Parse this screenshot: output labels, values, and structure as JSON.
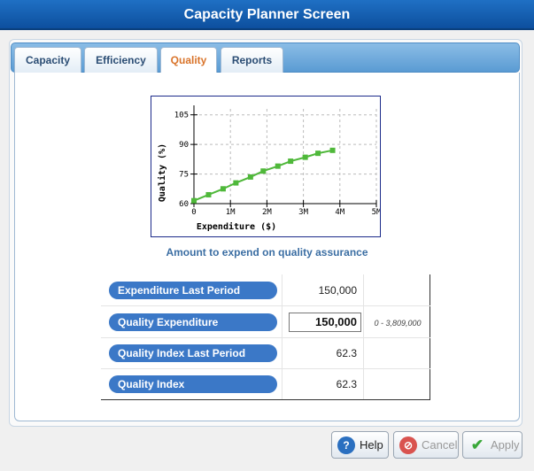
{
  "window": {
    "title": "Capacity Planner Screen"
  },
  "tabs": [
    {
      "label": "Capacity",
      "active": false
    },
    {
      "label": "Efficiency",
      "active": false
    },
    {
      "label": "Quality",
      "active": true
    },
    {
      "label": "Reports",
      "active": false
    }
  ],
  "chart_data": {
    "type": "line",
    "title": "",
    "xlabel": "Expenditure ($)",
    "ylabel": "Quality (%)",
    "xlim": [
      0,
      5000000
    ],
    "ylim": [
      60,
      108
    ],
    "x_ticks": [
      {
        "value": 0,
        "label": "0"
      },
      {
        "value": 1000000,
        "label": "1M"
      },
      {
        "value": 2000000,
        "label": "2M"
      },
      {
        "value": 3000000,
        "label": "3M"
      },
      {
        "value": 4000000,
        "label": "4M"
      },
      {
        "value": 5000000,
        "label": "5M"
      }
    ],
    "y_ticks": [
      {
        "value": 60,
        "label": "60"
      },
      {
        "value": 75,
        "label": "75"
      },
      {
        "value": 90,
        "label": "90"
      },
      {
        "value": 105,
        "label": "105"
      }
    ],
    "grid": true,
    "series": [
      {
        "color": "#4fb83a",
        "points": [
          [
            0,
            61.5
          ],
          [
            400000,
            64.5
          ],
          [
            800000,
            67.5
          ],
          [
            1150000,
            70.5
          ],
          [
            1550000,
            73.5
          ],
          [
            1900000,
            76.5
          ],
          [
            2300000,
            79.0
          ],
          [
            2650000,
            81.5
          ],
          [
            3050000,
            83.5
          ],
          [
            3400000,
            85.5
          ],
          [
            3800000,
            87.0
          ]
        ]
      }
    ]
  },
  "caption": "Amount to expend on quality assurance",
  "rows": [
    {
      "label": "Expenditure Last Period",
      "value": "150,000"
    },
    {
      "label": "Quality Expenditure",
      "value": "150,000",
      "range": "0 - 3,809,000"
    },
    {
      "label": "Quality Index Last Period",
      "value": "62.3"
    },
    {
      "label": "Quality Index",
      "value": "62.3"
    }
  ],
  "buttons": {
    "help": {
      "label": "Help",
      "icon": "help-icon",
      "color": "#2a6fc0"
    },
    "cancel": {
      "label": "Cancel",
      "icon": "cancel-icon",
      "color": "#d9534f"
    },
    "apply": {
      "label": "Apply",
      "icon": "check-icon",
      "color": "#3aa83a"
    }
  }
}
